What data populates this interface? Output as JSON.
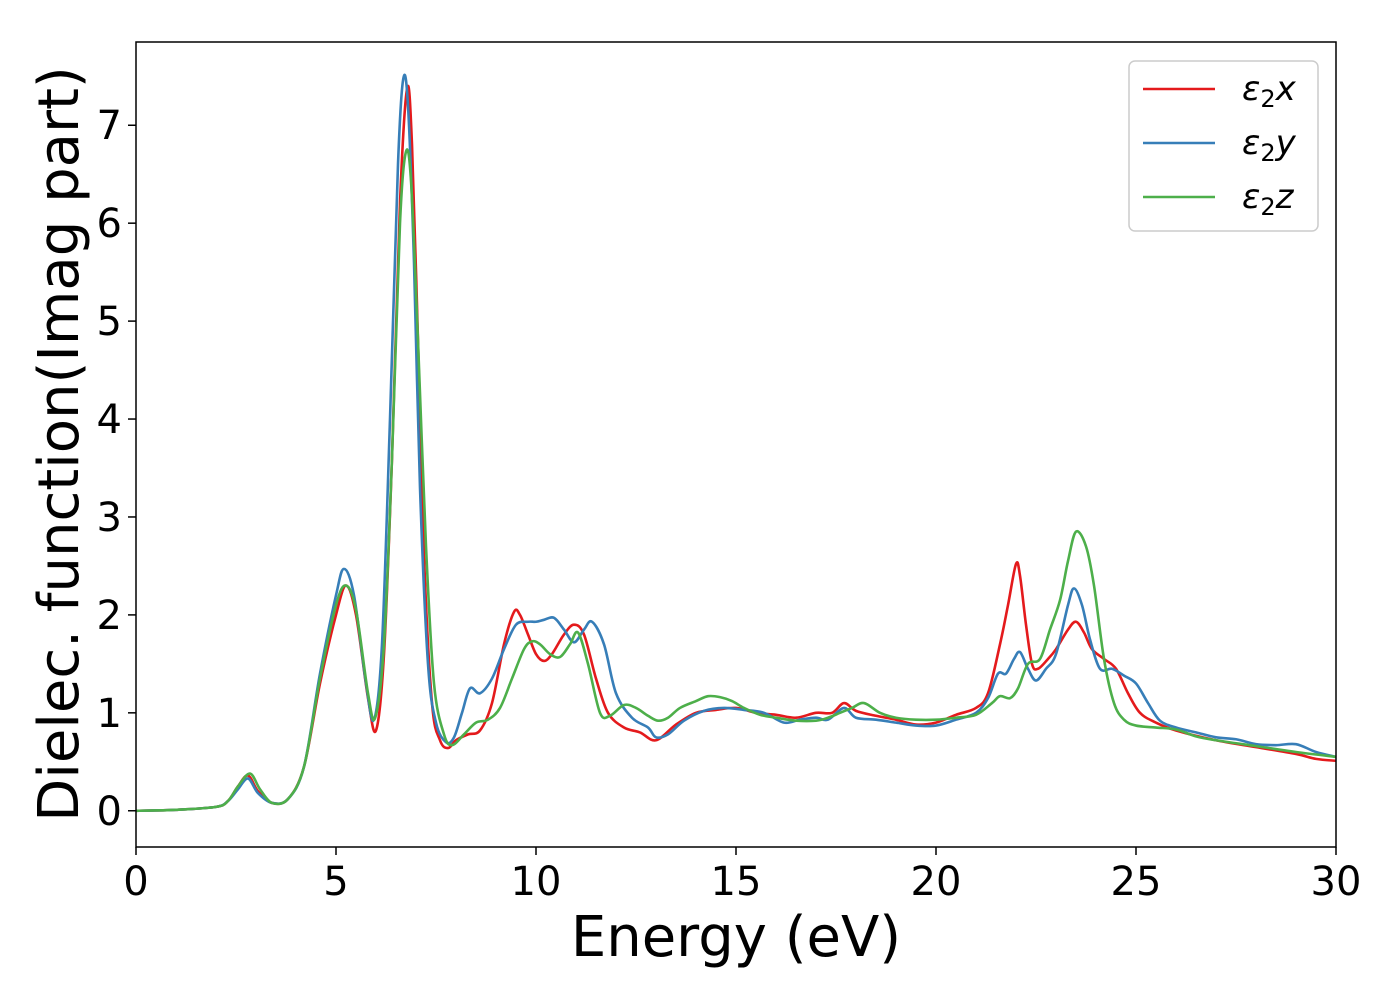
{
  "chart_data": {
    "type": "line",
    "title": "",
    "xlabel": "Energy (eV)",
    "ylabel": "Dielec. function(Imag part)",
    "xlim": [
      0,
      30
    ],
    "ylim": [
      -0.37,
      7.85
    ],
    "xticks": [
      0,
      5,
      10,
      15,
      20,
      25,
      30
    ],
    "yticks": [
      0,
      1,
      2,
      3,
      4,
      5,
      6,
      7
    ],
    "grid": false,
    "legend_position": "top-right",
    "legend_labels": [
      {
        "base": "ε",
        "sub": "2",
        "suffix": "x"
      },
      {
        "base": "ε",
        "sub": "2",
        "suffix": "y"
      },
      {
        "base": "ε",
        "sub": "2",
        "suffix": "z"
      }
    ],
    "series": [
      {
        "name": "ε2x",
        "color": "#e41a1c",
        "x": [
          0,
          1,
          2,
          2.3,
          2.55,
          2.8,
          3.05,
          3.4,
          3.8,
          4.2,
          4.6,
          5.0,
          5.25,
          5.5,
          5.8,
          6.0,
          6.2,
          6.4,
          6.6,
          6.78,
          6.9,
          7.05,
          7.2,
          7.4,
          7.6,
          7.8,
          8.0,
          8.3,
          8.6,
          8.9,
          9.2,
          9.45,
          9.6,
          9.8,
          10.0,
          10.2,
          10.4,
          10.7,
          10.95,
          11.2,
          11.5,
          11.8,
          12.2,
          12.6,
          13.0,
          13.5,
          14.0,
          14.5,
          15.0,
          15.5,
          16.0,
          16.5,
          17.0,
          17.4,
          17.7,
          18.0,
          18.5,
          19.0,
          19.5,
          20.0,
          20.5,
          21.0,
          21.3,
          21.6,
          21.8,
          22.0,
          22.1,
          22.25,
          22.4,
          22.55,
          22.8,
          23.0,
          23.3,
          23.5,
          23.7,
          23.9,
          24.2,
          24.5,
          24.8,
          25.1,
          25.5,
          26.0,
          27.0,
          28.0,
          29.0,
          29.5,
          30.0
        ],
        "y": [
          0.0,
          0.01,
          0.04,
          0.1,
          0.25,
          0.36,
          0.2,
          0.08,
          0.12,
          0.45,
          1.3,
          2.0,
          2.3,
          2.0,
          1.15,
          0.82,
          1.6,
          3.6,
          6.2,
          7.38,
          6.8,
          4.8,
          2.6,
          1.1,
          0.72,
          0.64,
          0.72,
          0.78,
          0.82,
          1.1,
          1.7,
          2.03,
          2.0,
          1.8,
          1.6,
          1.53,
          1.6,
          1.8,
          1.9,
          1.8,
          1.35,
          1.0,
          0.85,
          0.8,
          0.72,
          0.88,
          1.0,
          1.03,
          1.05,
          1.0,
          0.98,
          0.95,
          1.0,
          1.0,
          1.1,
          1.02,
          0.97,
          0.93,
          0.88,
          0.9,
          0.98,
          1.05,
          1.2,
          1.7,
          2.1,
          2.52,
          2.4,
          1.9,
          1.5,
          1.45,
          1.55,
          1.65,
          1.85,
          1.93,
          1.82,
          1.65,
          1.55,
          1.45,
          1.2,
          1.0,
          0.9,
          0.82,
          0.72,
          0.65,
          0.58,
          0.53,
          0.51
        ]
      },
      {
        "name": "ε2y",
        "color": "#377eb8",
        "x": [
          0,
          1,
          2,
          2.3,
          2.55,
          2.8,
          3.05,
          3.4,
          3.8,
          4.2,
          4.6,
          5.0,
          5.2,
          5.45,
          5.75,
          5.95,
          6.15,
          6.35,
          6.55,
          6.68,
          6.8,
          6.95,
          7.1,
          7.3,
          7.5,
          7.75,
          7.95,
          8.15,
          8.35,
          8.6,
          8.9,
          9.2,
          9.5,
          9.8,
          10.0,
          10.2,
          10.45,
          10.7,
          10.95,
          11.2,
          11.4,
          11.7,
          12.0,
          12.4,
          12.8,
          13.0,
          13.3,
          13.7,
          14.2,
          14.7,
          15.2,
          15.7,
          16.2,
          16.6,
          17.0,
          17.3,
          17.7,
          18.0,
          18.5,
          19.0,
          19.5,
          20.0,
          20.5,
          21.0,
          21.3,
          21.55,
          21.75,
          21.95,
          22.1,
          22.3,
          22.5,
          22.75,
          23.0,
          23.3,
          23.45,
          23.65,
          23.85,
          24.1,
          24.4,
          24.7,
          25.0,
          25.3,
          25.6,
          26.0,
          26.5,
          27.0,
          27.5,
          28.0,
          28.5,
          29.0,
          29.5,
          30.0
        ],
        "y": [
          0.0,
          0.01,
          0.04,
          0.1,
          0.22,
          0.33,
          0.18,
          0.08,
          0.12,
          0.45,
          1.4,
          2.2,
          2.47,
          2.2,
          1.3,
          0.93,
          1.7,
          4.0,
          6.6,
          7.47,
          7.2,
          5.6,
          3.3,
          1.5,
          0.9,
          0.7,
          0.75,
          1.0,
          1.25,
          1.2,
          1.35,
          1.65,
          1.9,
          1.93,
          1.93,
          1.95,
          1.97,
          1.85,
          1.72,
          1.85,
          1.93,
          1.7,
          1.2,
          0.95,
          0.85,
          0.75,
          0.78,
          0.92,
          1.02,
          1.05,
          1.03,
          1.0,
          0.9,
          0.93,
          0.95,
          0.93,
          1.05,
          0.95,
          0.93,
          0.9,
          0.87,
          0.87,
          0.93,
          1.0,
          1.15,
          1.4,
          1.4,
          1.55,
          1.62,
          1.45,
          1.33,
          1.45,
          1.6,
          2.1,
          2.27,
          2.1,
          1.75,
          1.45,
          1.45,
          1.38,
          1.3,
          1.1,
          0.92,
          0.85,
          0.8,
          0.75,
          0.73,
          0.68,
          0.67,
          0.68,
          0.6,
          0.55
        ]
      },
      {
        "name": "ε2z",
        "color": "#4daf4a",
        "x": [
          0,
          1,
          2,
          2.3,
          2.55,
          2.85,
          3.1,
          3.4,
          3.8,
          4.2,
          4.6,
          5.0,
          5.25,
          5.5,
          5.8,
          5.98,
          6.2,
          6.4,
          6.6,
          6.75,
          6.88,
          7.05,
          7.25,
          7.45,
          7.7,
          7.9,
          8.2,
          8.5,
          8.8,
          9.1,
          9.4,
          9.7,
          9.9,
          10.1,
          10.35,
          10.6,
          10.85,
          11.05,
          11.3,
          11.6,
          11.85,
          12.2,
          12.5,
          12.8,
          13.05,
          13.3,
          13.6,
          14.0,
          14.3,
          14.6,
          14.9,
          15.2,
          15.6,
          16.0,
          16.5,
          17.0,
          17.3,
          17.6,
          17.9,
          18.2,
          18.6,
          19.0,
          19.5,
          20.0,
          20.5,
          21.0,
          21.4,
          21.6,
          21.85,
          22.05,
          22.3,
          22.6,
          22.85,
          23.1,
          23.3,
          23.5,
          23.75,
          23.95,
          24.2,
          24.45,
          24.7,
          25.0,
          25.5,
          26.0,
          26.5,
          27.0,
          28.0,
          29.0,
          30.0
        ],
        "y": [
          0.0,
          0.01,
          0.04,
          0.1,
          0.25,
          0.38,
          0.22,
          0.08,
          0.12,
          0.45,
          1.35,
          2.1,
          2.3,
          2.05,
          1.2,
          0.95,
          1.7,
          3.6,
          6.0,
          6.73,
          6.4,
          4.8,
          2.7,
          1.3,
          0.78,
          0.67,
          0.78,
          0.9,
          0.93,
          1.05,
          1.35,
          1.65,
          1.73,
          1.7,
          1.6,
          1.57,
          1.7,
          1.82,
          1.5,
          1.0,
          0.97,
          1.08,
          1.05,
          0.97,
          0.92,
          0.95,
          1.05,
          1.12,
          1.17,
          1.16,
          1.12,
          1.05,
          0.98,
          0.95,
          0.92,
          0.92,
          0.95,
          1.0,
          1.05,
          1.1,
          1.0,
          0.95,
          0.93,
          0.93,
          0.95,
          0.98,
          1.1,
          1.17,
          1.15,
          1.25,
          1.5,
          1.55,
          1.85,
          2.15,
          2.55,
          2.85,
          2.7,
          2.3,
          1.55,
          1.1,
          0.93,
          0.87,
          0.85,
          0.83,
          0.76,
          0.72,
          0.66,
          0.6,
          0.55
        ]
      }
    ]
  }
}
